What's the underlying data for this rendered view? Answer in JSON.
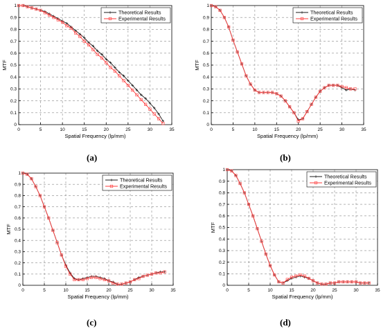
{
  "colors": {
    "theoretical": "#1a1a1a",
    "experimental": "#ff3b3b",
    "grid": "#888888",
    "axis": "#000000",
    "background": "#ffffff"
  },
  "panels": [
    {
      "label": "(a)"
    },
    {
      "label": "(b)"
    },
    {
      "label": "(c)"
    },
    {
      "label": "(d)"
    }
  ],
  "chart_data": [
    {
      "type": "line",
      "xlabel": "Spatial Frequency (lp/mm)",
      "ylabel": "MTF",
      "xlim": [
        0,
        35
      ],
      "ylim": [
        0,
        1
      ],
      "xticks": [
        "0",
        "5",
        "10",
        "15",
        "20",
        "25",
        "30",
        "35"
      ],
      "yticks": [
        "0",
        "0.1",
        "0.2",
        "0.3",
        "0.4",
        "0.5",
        "0.6",
        "0.7",
        "0.8",
        "0.9",
        "1"
      ],
      "grid": true,
      "legend_position": "top-right",
      "x": [
        0,
        1,
        2,
        3,
        4,
        5,
        6,
        7,
        8,
        9,
        10,
        11,
        12,
        13,
        14,
        15,
        16,
        17,
        18,
        19,
        20,
        21,
        22,
        23,
        24,
        25,
        26,
        27,
        28,
        29,
        30,
        31,
        32,
        33
      ],
      "series": [
        {
          "name": "Theoretical Results",
          "values": [
            1.0,
            1.0,
            0.99,
            0.98,
            0.97,
            0.96,
            0.95,
            0.93,
            0.91,
            0.89,
            0.87,
            0.85,
            0.82,
            0.79,
            0.76,
            0.73,
            0.69,
            0.66,
            0.62,
            0.59,
            0.55,
            0.52,
            0.48,
            0.44,
            0.41,
            0.37,
            0.33,
            0.29,
            0.25,
            0.22,
            0.18,
            0.14,
            0.09,
            0.03
          ]
        },
        {
          "name": "Experimental Results",
          "values": [
            1.0,
            1.0,
            0.99,
            0.98,
            0.97,
            0.96,
            0.94,
            0.92,
            0.9,
            0.88,
            0.86,
            0.83,
            0.81,
            0.77,
            0.74,
            0.7,
            0.67,
            0.63,
            0.59,
            0.56,
            0.52,
            0.48,
            0.45,
            0.41,
            0.37,
            0.33,
            0.29,
            0.25,
            0.21,
            0.17,
            0.13,
            0.09,
            0.05,
            0.01
          ]
        }
      ]
    },
    {
      "type": "line",
      "xlabel": "Spatial Frequency (lp/mm)",
      "ylabel": "MTF",
      "xlim": [
        0,
        35
      ],
      "ylim": [
        0,
        1
      ],
      "xticks": [
        "0",
        "5",
        "10",
        "15",
        "20",
        "25",
        "30",
        "35"
      ],
      "yticks": [
        "0",
        "0.1",
        "0.2",
        "0.3",
        "0.4",
        "0.5",
        "0.6",
        "0.7",
        "0.8",
        "0.9",
        "1"
      ],
      "grid": true,
      "legend_position": "top-right",
      "x": [
        0,
        1,
        2,
        3,
        4,
        5,
        6,
        7,
        8,
        9,
        10,
        11,
        12,
        13,
        14,
        15,
        16,
        17,
        18,
        19,
        20,
        21,
        22,
        23,
        24,
        25,
        26,
        27,
        28,
        29,
        30,
        31,
        32,
        33
      ],
      "series": [
        {
          "name": "Theoretical Results",
          "values": [
            1.0,
            0.99,
            0.96,
            0.9,
            0.82,
            0.71,
            0.61,
            0.51,
            0.41,
            0.34,
            0.29,
            0.27,
            0.27,
            0.27,
            0.27,
            0.26,
            0.24,
            0.2,
            0.15,
            0.1,
            0.04,
            0.05,
            0.11,
            0.17,
            0.23,
            0.28,
            0.31,
            0.33,
            0.33,
            0.33,
            0.31,
            0.29,
            0.3,
            0.29
          ]
        },
        {
          "name": "Experimental Results",
          "values": [
            1.0,
            0.99,
            0.96,
            0.9,
            0.82,
            0.71,
            0.61,
            0.51,
            0.41,
            0.34,
            0.29,
            0.27,
            0.27,
            0.27,
            0.27,
            0.26,
            0.24,
            0.2,
            0.15,
            0.1,
            0.03,
            0.05,
            0.11,
            0.17,
            0.23,
            0.28,
            0.31,
            0.33,
            0.33,
            0.33,
            0.32,
            0.31,
            0.3,
            0.3
          ]
        }
      ]
    },
    {
      "type": "line",
      "xlabel": "Spatial Frequency (lp/mm)",
      "ylabel": "MTF",
      "xlim": [
        0,
        35
      ],
      "ylim": [
        0,
        1
      ],
      "xticks": [
        "0",
        "5",
        "10",
        "15",
        "20",
        "25",
        "30",
        "35"
      ],
      "yticks": [
        "0",
        "0.1",
        "0.2",
        "0.3",
        "0.4",
        "0.5",
        "0.6",
        "0.7",
        "0.8",
        "0.9",
        "1"
      ],
      "grid": true,
      "legend_position": "top-right",
      "x": [
        0,
        1,
        2,
        3,
        4,
        5,
        6,
        7,
        8,
        9,
        10,
        11,
        12,
        13,
        14,
        15,
        16,
        17,
        18,
        19,
        20,
        21,
        22,
        23,
        24,
        25,
        26,
        27,
        28,
        29,
        30,
        31,
        32,
        33
      ],
      "series": [
        {
          "name": "Theoretical Results",
          "values": [
            1.0,
            0.99,
            0.95,
            0.88,
            0.8,
            0.7,
            0.6,
            0.49,
            0.38,
            0.27,
            0.18,
            0.11,
            0.06,
            0.05,
            0.06,
            0.07,
            0.08,
            0.08,
            0.07,
            0.06,
            0.04,
            0.03,
            0.01,
            0.01,
            0.02,
            0.03,
            0.05,
            0.07,
            0.08,
            0.09,
            0.1,
            0.11,
            0.12,
            0.12
          ]
        },
        {
          "name": "Experimental Results",
          "values": [
            1.0,
            0.99,
            0.95,
            0.88,
            0.8,
            0.7,
            0.6,
            0.49,
            0.38,
            0.27,
            0.17,
            0.1,
            0.05,
            0.05,
            0.05,
            0.06,
            0.07,
            0.07,
            0.06,
            0.05,
            0.04,
            0.02,
            0.01,
            0.01,
            0.02,
            0.03,
            0.05,
            0.06,
            0.08,
            0.09,
            0.1,
            0.11,
            0.11,
            0.12
          ]
        }
      ]
    },
    {
      "type": "line",
      "xlabel": "Spatial Frequency (lp/mm)",
      "ylabel": "MTF",
      "xlim": [
        0,
        35
      ],
      "ylim": [
        0,
        1
      ],
      "xticks": [
        "0",
        "5",
        "10",
        "15",
        "20",
        "25",
        "30",
        "35"
      ],
      "yticks": [
        "0",
        "0.1",
        "0.2",
        "0.3",
        "0.4",
        "0.5",
        "0.6",
        "0.7",
        "0.8",
        "0.9",
        "1"
      ],
      "grid": true,
      "legend_position": "top-right",
      "x": [
        0,
        1,
        2,
        3,
        4,
        5,
        6,
        7,
        8,
        9,
        10,
        11,
        12,
        13,
        14,
        15,
        16,
        17,
        18,
        19,
        20,
        21,
        22,
        23,
        24,
        25,
        26,
        27,
        28,
        29,
        30,
        31,
        32,
        33
      ],
      "series": [
        {
          "name": "Theoretical Results",
          "values": [
            1.0,
            0.99,
            0.95,
            0.88,
            0.8,
            0.7,
            0.6,
            0.49,
            0.38,
            0.27,
            0.17,
            0.09,
            0.03,
            0.02,
            0.04,
            0.06,
            0.07,
            0.08,
            0.07,
            0.06,
            0.04,
            0.02,
            0.01,
            0.01,
            0.02,
            0.02,
            0.03,
            0.03,
            0.03,
            0.03,
            0.03,
            0.02,
            0.02,
            0.02
          ]
        },
        {
          "name": "Experimental Results",
          "values": [
            1.0,
            0.99,
            0.95,
            0.88,
            0.8,
            0.7,
            0.6,
            0.49,
            0.38,
            0.27,
            0.17,
            0.09,
            0.03,
            0.02,
            0.05,
            0.07,
            0.08,
            0.09,
            0.08,
            0.06,
            0.04,
            0.02,
            0.01,
            0.01,
            0.02,
            0.02,
            0.03,
            0.03,
            0.03,
            0.03,
            0.03,
            0.02,
            0.02,
            0.02
          ]
        }
      ]
    }
  ]
}
